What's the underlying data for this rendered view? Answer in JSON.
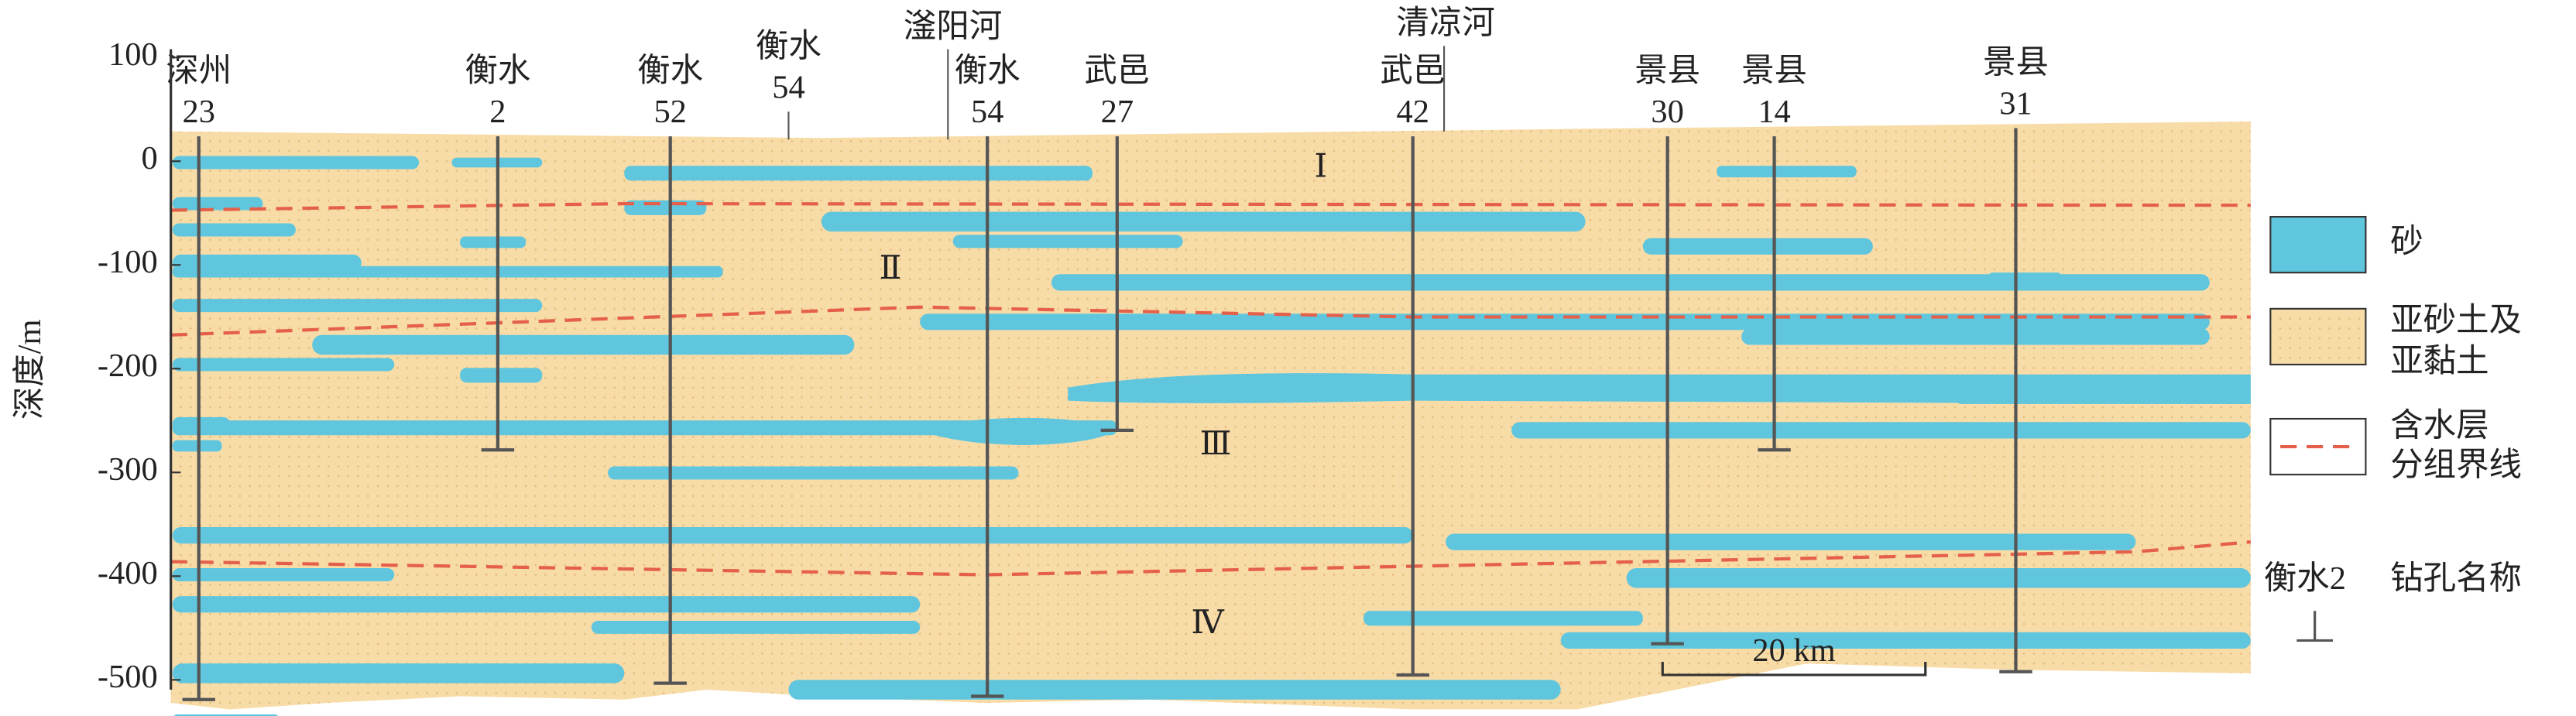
{
  "axis": {
    "label": "深度/m",
    "ticks": [
      100,
      0,
      -100,
      -200,
      -300,
      -400,
      -500
    ]
  },
  "boreholes": [
    {
      "county": "深州",
      "number": "23"
    },
    {
      "county": "衡水",
      "number": "2"
    },
    {
      "county": "衡水",
      "number": "52"
    },
    {
      "county": "衡水",
      "number": "54"
    },
    {
      "county": "衡水",
      "number": "54"
    },
    {
      "county": "武邑",
      "number": "27"
    },
    {
      "county": "武邑",
      "number": "42"
    },
    {
      "county": "景县",
      "number": "30"
    },
    {
      "county": "景县",
      "number": "14"
    },
    {
      "county": "景县",
      "number": "31"
    }
  ],
  "rivers": [
    "滏阳河",
    "清凉河"
  ],
  "zones": [
    "Ⅰ",
    "Ⅱ",
    "Ⅲ",
    "Ⅳ"
  ],
  "legend": [
    {
      "lines": [
        "砂"
      ]
    },
    {
      "lines": [
        "亚砂土及",
        "亚黏土"
      ]
    },
    {
      "lines": [
        "含水层",
        "分组界线"
      ]
    },
    {
      "symbol": "衡水2",
      "lines": [
        "钻孔名称"
      ]
    }
  ],
  "scale_bar": "20 km"
}
